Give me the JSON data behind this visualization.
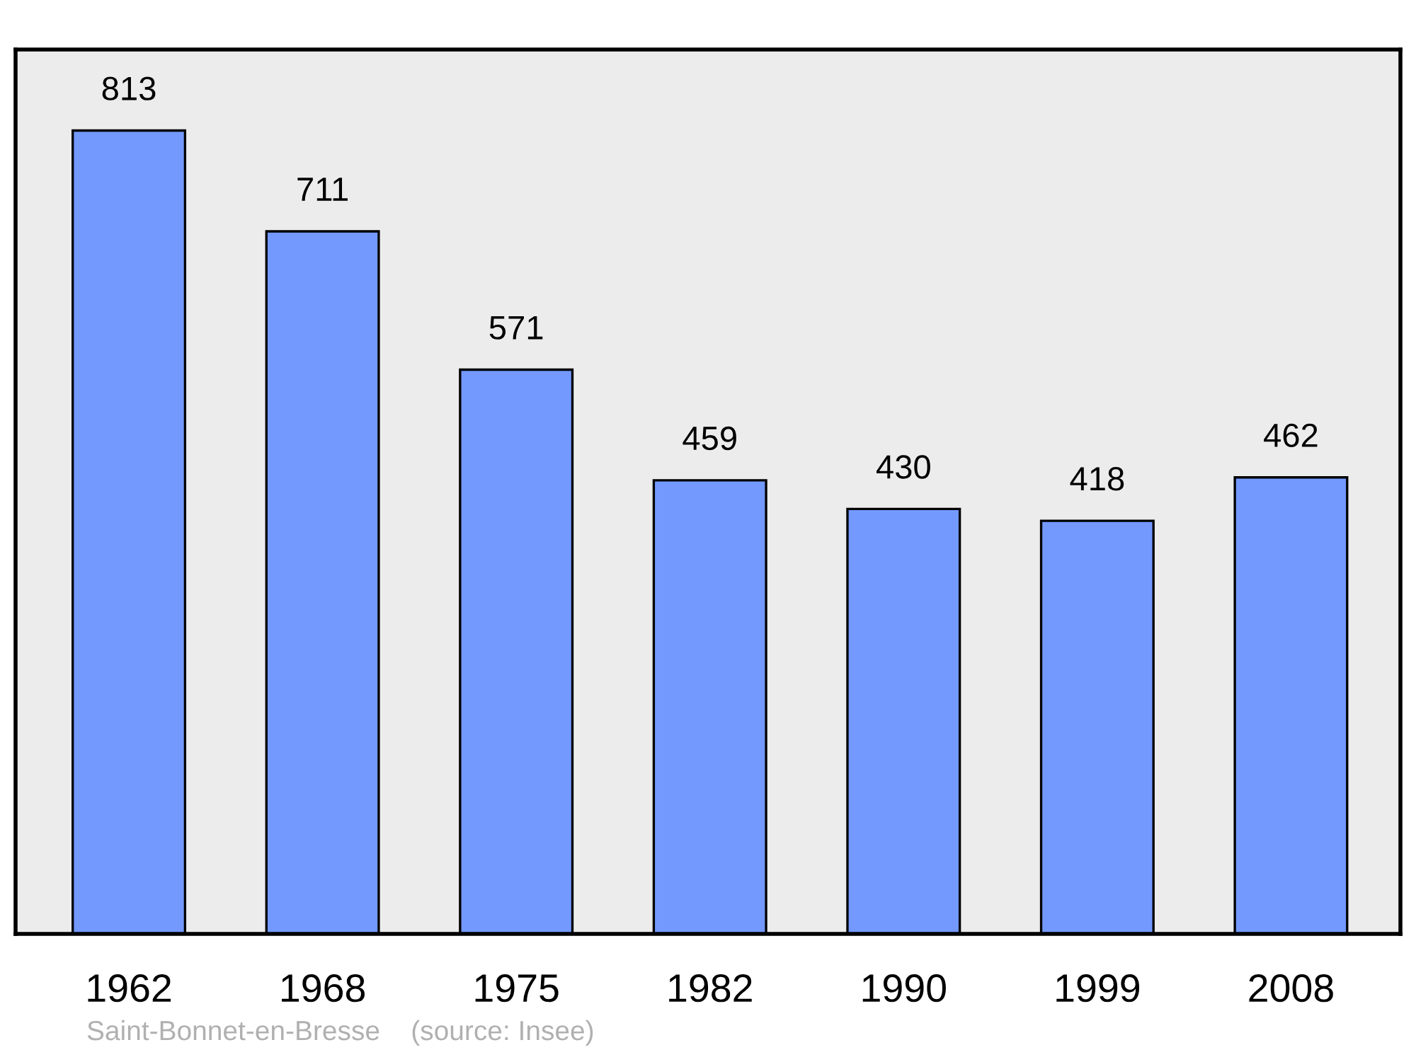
{
  "chart_data": {
    "type": "bar",
    "categories": [
      "1962",
      "1968",
      "1975",
      "1982",
      "1990",
      "1999",
      "2008"
    ],
    "values": [
      813,
      711,
      571,
      459,
      430,
      418,
      462
    ],
    "color": "#7399ff",
    "ylim": [
      0,
      895
    ],
    "tick_labels": "x",
    "data_labels": true,
    "grid": false,
    "legend": false,
    "annotations": [
      "Saint-Bonnet-en-Bresse    (source: Insee)"
    ]
  }
}
